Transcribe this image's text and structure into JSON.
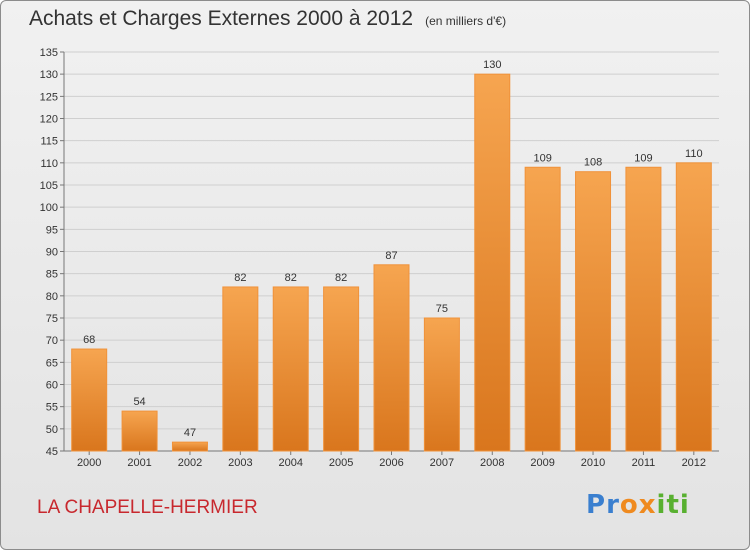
{
  "chart_data": {
    "type": "bar",
    "title": "Achats et Charges Externes 2000 à 2012",
    "subtitle": "(en milliers d'€)",
    "categories": [
      "2000",
      "2001",
      "2002",
      "2003",
      "2004",
      "2005",
      "2006",
      "2007",
      "2008",
      "2009",
      "2010",
      "2011",
      "2012"
    ],
    "values": [
      68,
      54,
      47,
      82,
      82,
      82,
      87,
      75,
      130,
      109,
      108,
      109,
      110
    ],
    "ylim": [
      45,
      135
    ],
    "yticks": [
      45,
      50,
      55,
      60,
      65,
      70,
      75,
      80,
      85,
      90,
      95,
      100,
      105,
      110,
      115,
      120,
      125,
      130,
      135
    ],
    "grid": true,
    "bar_color": "#f0923a",
    "bar_color_dark": "#d9761d"
  },
  "footer": {
    "place": "LA CHAPELLE-HERMIER",
    "logo_letters": [
      {
        "ch": "P",
        "color": "#3a7fcf"
      },
      {
        "ch": "r",
        "color": "#3a7fcf"
      },
      {
        "ch": "o",
        "color": "#ef8a1f"
      },
      {
        "ch": "x",
        "color": "#ef8a1f"
      },
      {
        "ch": "i",
        "color": "#58b030"
      },
      {
        "ch": "t",
        "color": "#58b030"
      },
      {
        "ch": "i",
        "color": "#58b030"
      }
    ]
  }
}
